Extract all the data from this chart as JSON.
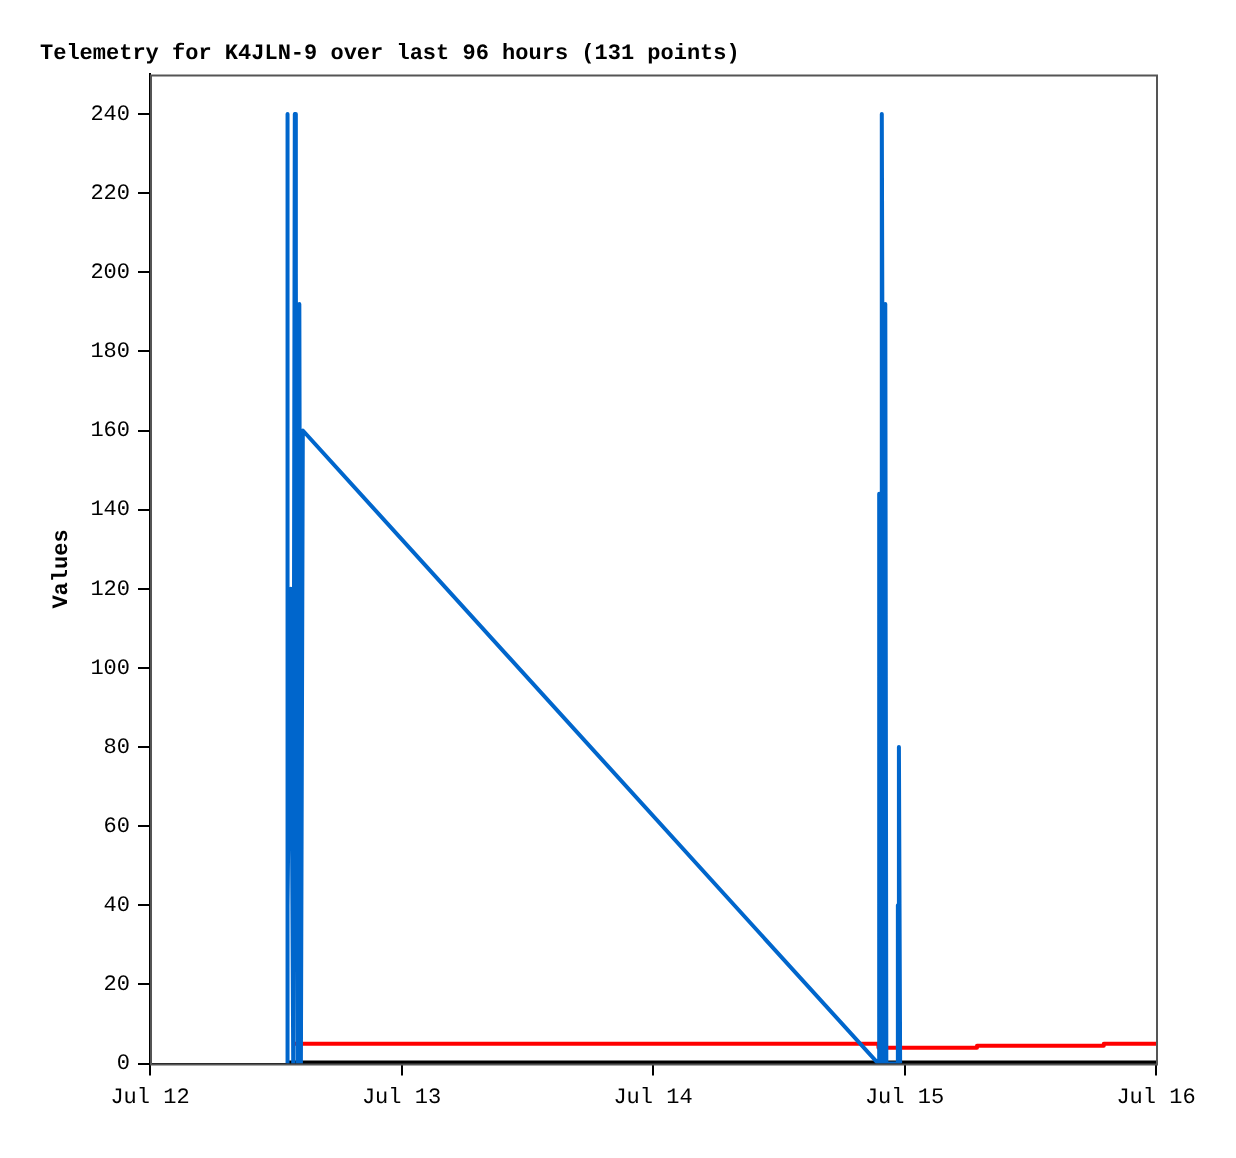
{
  "chart_data": {
    "type": "line",
    "title": "Telemetry for K4JLN-9 over last 96 hours (131 points)",
    "ylabel": "Values",
    "xlim": [
      "--07-12",
      "--07-16"
    ],
    "xticks": [
      {
        "value": "--07-12",
        "label": "Jul 12"
      },
      {
        "value": "--07-13",
        "label": "Jul 13"
      },
      {
        "value": "--07-14",
        "label": "Jul 14"
      },
      {
        "value": "--07-15",
        "label": "Jul 15"
      },
      {
        "value": "--07-16",
        "label": "Jul 16"
      }
    ],
    "ylim": [
      0,
      250
    ],
    "yticks": [
      0,
      20,
      40,
      60,
      80,
      100,
      120,
      140,
      160,
      180,
      200,
      220,
      240
    ],
    "grid": false,
    "legend": false,
    "marker": "none",
    "line_style": "solid",
    "series": [
      {
        "color": "#0066cc",
        "x": [
          "--07-12T13:03",
          "--07-12T13:05",
          "--07-12T13:10",
          "--07-12T13:26",
          "--07-12T13:40",
          "--07-12T13:49",
          "--07-12T13:55",
          "--07-12T14:05",
          "--07-12T14:15",
          "--07-12T14:24",
          "--07-12T14:35",
          "--07-14T21:30",
          "--07-14T21:35",
          "--07-14T21:45",
          "--07-14T21:50",
          "--07-14T22:05",
          "--07-14T22:10",
          "--07-14T22:16",
          "--07-14T23:20",
          "--07-14T23:22",
          "--07-14T23:25",
          "--07-14T23:28",
          "--07-14T23:35"
        ],
        "values": [
          0,
          240,
          40,
          120,
          0,
          240,
          200,
          0,
          192,
          0,
          160,
          0,
          144,
          0,
          240,
          0,
          192,
          0,
          0,
          40,
          0,
          80,
          0
        ]
      },
      {
        "color": "#ff0000",
        "x": [
          "--07-12T13:49",
          "--07-14T21:30",
          "--07-14T21:31",
          "--07-15T06:54",
          "--07-15T06:55",
          "--07-15T19:00",
          "--07-15T19:01",
          "--07-16T00:00"
        ],
        "values": [
          5,
          5,
          4,
          4,
          4.5,
          4.5,
          5,
          5
        ]
      },
      {
        "color": "#000000",
        "x": [
          "--07-12T13:03",
          "--07-16T00:00"
        ],
        "values": [
          0,
          0
        ]
      }
    ]
  }
}
